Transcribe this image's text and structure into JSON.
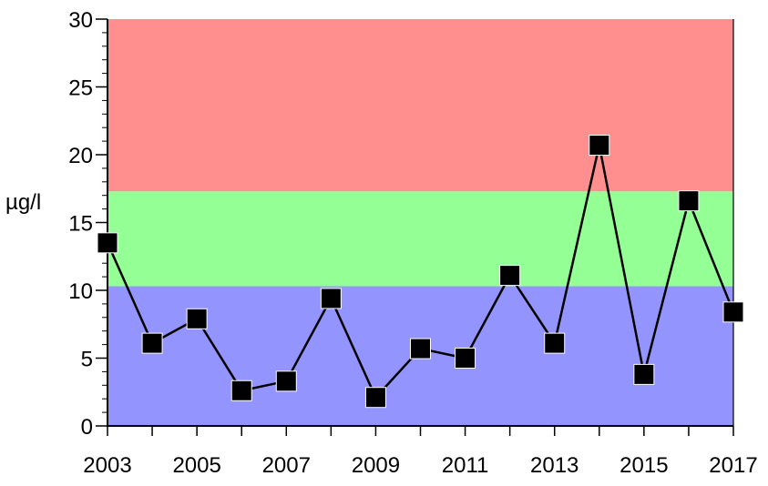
{
  "chart_data": {
    "type": "line",
    "title": "",
    "xlabel": "",
    "ylabel": "µg/l",
    "xlim": [
      2003,
      2017
    ],
    "ylim": [
      0,
      30
    ],
    "x_tick_labels": [
      "2003",
      "2005",
      "2007",
      "2009",
      "2011",
      "2013",
      "2015",
      "2017"
    ],
    "y_tick_labels": [
      "0",
      "5",
      "10",
      "15",
      "20",
      "25",
      "30"
    ],
    "grid": false,
    "bands": [
      {
        "from": 0,
        "to": 10.3,
        "color": "#9494ff"
      },
      {
        "from": 10.3,
        "to": 17.3,
        "color": "#94ff94"
      },
      {
        "from": 17.3,
        "to": 30,
        "color": "#ff8e8e"
      }
    ],
    "series": [
      {
        "color": "#000000",
        "marker": "square",
        "x": [
          2003,
          2004,
          2005,
          2006,
          2007,
          2008,
          2009,
          2010,
          2011,
          2012,
          2013,
          2014,
          2015,
          2016,
          2017
        ],
        "values": [
          13.5,
          6.1,
          7.9,
          2.6,
          3.3,
          9.4,
          2.1,
          5.7,
          5.0,
          11.1,
          6.1,
          20.7,
          3.8,
          16.6,
          8.4
        ]
      }
    ]
  }
}
